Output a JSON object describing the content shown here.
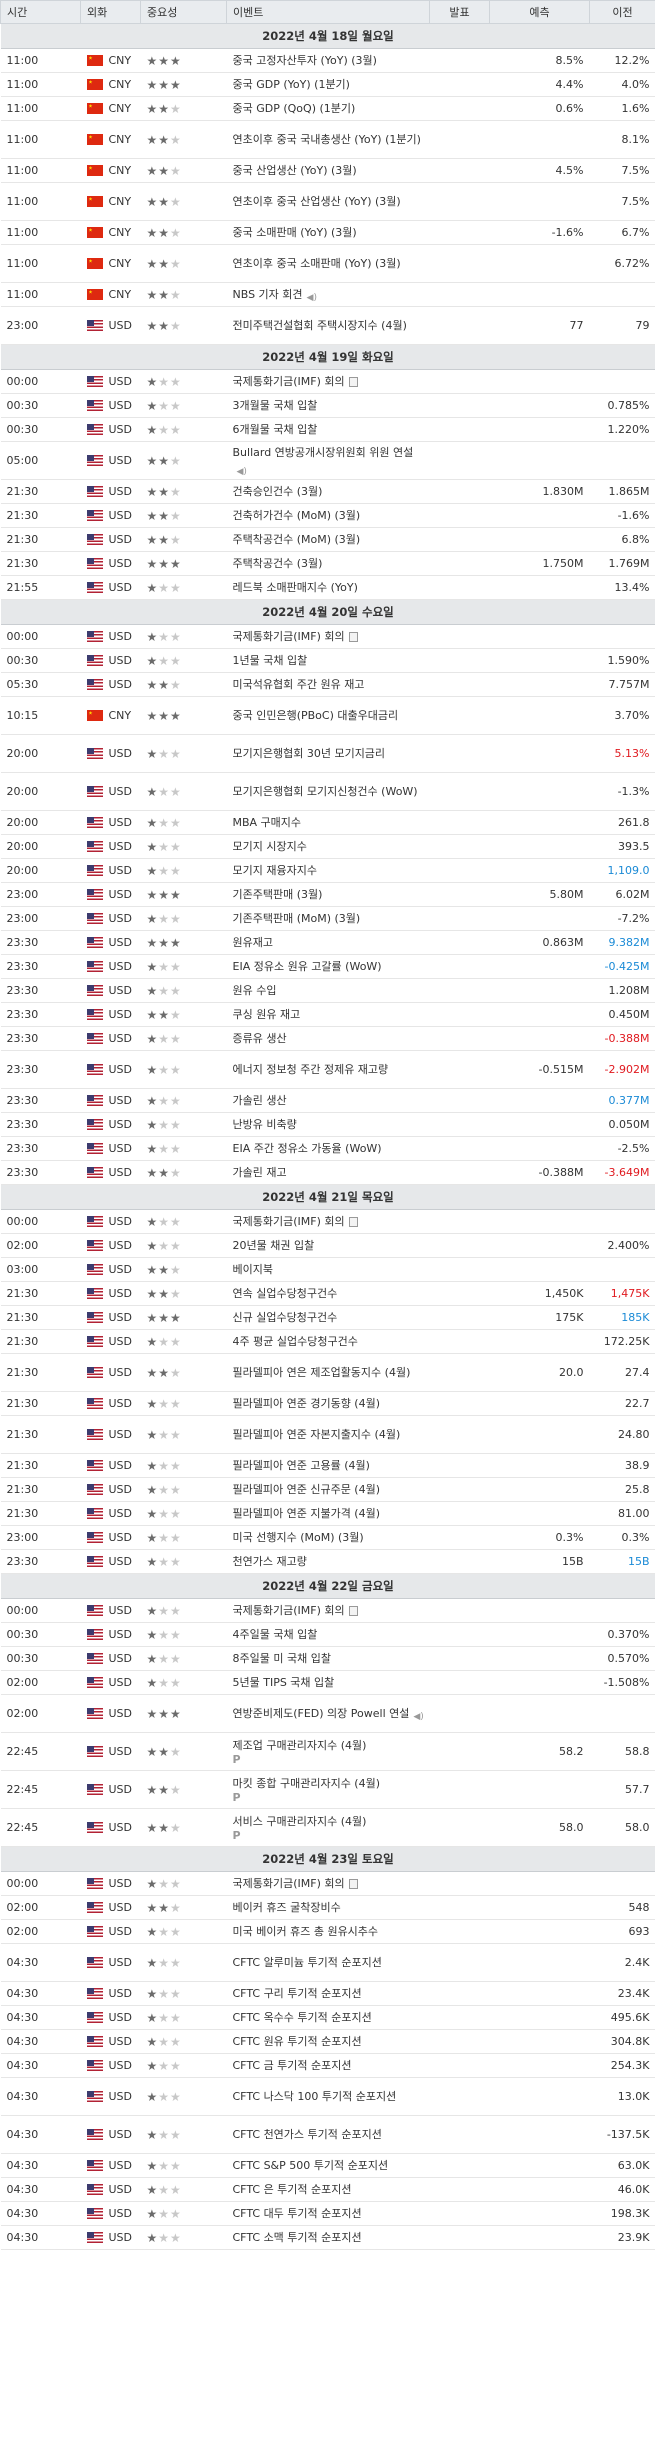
{
  "header": {
    "time": "시간",
    "currency": "외화",
    "importance": "중요성",
    "event": "이벤트",
    "actual": "발표",
    "forecast": "예측",
    "previous": "이전"
  },
  "rows": [
    {
      "date": "2022년 4월 18일 월요일"
    },
    {
      "t": "11:00",
      "c": "CNY",
      "f": "cn",
      "s": 3,
      "e": "중국 고정자산투자 (YoY) (3월)",
      "a": "",
      "fc": "8.5%",
      "p": "12.2%"
    },
    {
      "t": "11:00",
      "c": "CNY",
      "f": "cn",
      "s": 3,
      "e": "중국 GDP (YoY) (1분기)",
      "a": "",
      "fc": "4.4%",
      "p": "4.0%"
    },
    {
      "t": "11:00",
      "c": "CNY",
      "f": "cn",
      "s": 2,
      "e": "중국 GDP (QoQ) (1분기)",
      "a": "",
      "fc": "0.6%",
      "p": "1.6%"
    },
    {
      "t": "11:00",
      "c": "CNY",
      "f": "cn",
      "s": 2,
      "e": "연초이후 중국 국내총생산 (YoY) (1분기)",
      "a": "",
      "fc": "",
      "p": "8.1%",
      "h": "38"
    },
    {
      "t": "11:00",
      "c": "CNY",
      "f": "cn",
      "s": 2,
      "e": "중국 산업생산 (YoY) (3월)",
      "a": "",
      "fc": "4.5%",
      "p": "7.5%"
    },
    {
      "t": "11:00",
      "c": "CNY",
      "f": "cn",
      "s": 2,
      "e": "연초이후 중국 산업생산 (YoY) (3월)",
      "a": "",
      "fc": "",
      "p": "7.5%",
      "h": "38"
    },
    {
      "t": "11:00",
      "c": "CNY",
      "f": "cn",
      "s": 2,
      "e": "중국 소매판매 (YoY) (3월)",
      "a": "",
      "fc": "-1.6%",
      "p": "6.7%"
    },
    {
      "t": "11:00",
      "c": "CNY",
      "f": "cn",
      "s": 2,
      "e": "연초이후 중국 소매판매 (YoY) (3월)",
      "a": "",
      "fc": "",
      "p": "6.72%",
      "h": "38"
    },
    {
      "t": "11:00",
      "c": "CNY",
      "f": "cn",
      "s": 2,
      "e": "NBS 기자 회견",
      "a": "",
      "fc": "",
      "p": "",
      "ico": "sound"
    },
    {
      "t": "23:00",
      "c": "USD",
      "f": "us",
      "s": 2,
      "e": "전미주택건설협회 주택시장지수 (4월)",
      "a": "",
      "fc": "77",
      "p": "79",
      "h": "38"
    },
    {
      "date": "2022년 4월 19일 화요일"
    },
    {
      "t": "00:00",
      "c": "USD",
      "f": "us",
      "s": 1,
      "e": "국제통화기금(IMF) 회의",
      "a": "",
      "fc": "",
      "p": "",
      "ico": "doc"
    },
    {
      "t": "00:30",
      "c": "USD",
      "f": "us",
      "s": 1,
      "e": "3개월물 국채 입찰",
      "a": "",
      "fc": "",
      "p": "0.785%"
    },
    {
      "t": "00:30",
      "c": "USD",
      "f": "us",
      "s": 1,
      "e": "6개월물 국채 입찰",
      "a": "",
      "fc": "",
      "p": "1.220%"
    },
    {
      "t": "05:00",
      "c": "USD",
      "f": "us",
      "s": 2,
      "e": "Bullard 연방공개시장위원회 위원 연설",
      "a": "",
      "fc": "",
      "p": "",
      "h": "38",
      "ico": "sound"
    },
    {
      "t": "21:30",
      "c": "USD",
      "f": "us",
      "s": 2,
      "e": "건축승인건수 (3월)",
      "a": "",
      "fc": "1.830M",
      "p": "1.865M"
    },
    {
      "t": "21:30",
      "c": "USD",
      "f": "us",
      "s": 2,
      "e": "건축허가건수 (MoM) (3월)",
      "a": "",
      "fc": "",
      "p": "-1.6%"
    },
    {
      "t": "21:30",
      "c": "USD",
      "f": "us",
      "s": 2,
      "e": "주택착공건수 (MoM) (3월)",
      "a": "",
      "fc": "",
      "p": "6.8%"
    },
    {
      "t": "21:30",
      "c": "USD",
      "f": "us",
      "s": 3,
      "e": "주택착공건수 (3월)",
      "a": "",
      "fc": "1.750M",
      "p": "1.769M"
    },
    {
      "t": "21:55",
      "c": "USD",
      "f": "us",
      "s": 1,
      "e": "레드북 소매판매지수 (YoY)",
      "a": "",
      "fc": "",
      "p": "13.4%"
    },
    {
      "date": "2022년 4월 20일 수요일"
    },
    {
      "t": "00:00",
      "c": "USD",
      "f": "us",
      "s": 1,
      "e": "국제통화기금(IMF) 회의",
      "a": "",
      "fc": "",
      "p": "",
      "ico": "doc"
    },
    {
      "t": "00:30",
      "c": "USD",
      "f": "us",
      "s": 1,
      "e": "1년물 국채 입찰",
      "a": "",
      "fc": "",
      "p": "1.590%"
    },
    {
      "t": "05:30",
      "c": "USD",
      "f": "us",
      "s": 2,
      "e": "미국석유협회 주간 원유 재고",
      "a": "",
      "fc": "",
      "p": "7.757M"
    },
    {
      "t": "10:15",
      "c": "CNY",
      "f": "cn",
      "s": 3,
      "e": "중국 인민은행(PBoC) 대출우대금리",
      "a": "",
      "fc": "",
      "p": "3.70%",
      "h": "38"
    },
    {
      "t": "20:00",
      "c": "USD",
      "f": "us",
      "s": 1,
      "e": "모기지은행협회 30년 모기지금리",
      "a": "",
      "fc": "",
      "p": "5.13%",
      "pc": "red",
      "h": "38"
    },
    {
      "t": "20:00",
      "c": "USD",
      "f": "us",
      "s": 1,
      "e": "모기지은행협회 모기지신청건수 (WoW)",
      "a": "",
      "fc": "",
      "p": "-1.3%",
      "h": "38"
    },
    {
      "t": "20:00",
      "c": "USD",
      "f": "us",
      "s": 1,
      "e": "MBA 구매지수",
      "a": "",
      "fc": "",
      "p": "261.8"
    },
    {
      "t": "20:00",
      "c": "USD",
      "f": "us",
      "s": 1,
      "e": "모기지 시장지수",
      "a": "",
      "fc": "",
      "p": "393.5"
    },
    {
      "t": "20:00",
      "c": "USD",
      "f": "us",
      "s": 1,
      "e": "모기지 재융자지수",
      "a": "",
      "fc": "",
      "p": "1,109.0",
      "pc": "blue"
    },
    {
      "t": "23:00",
      "c": "USD",
      "f": "us",
      "s": 3,
      "e": "기존주택판매 (3월)",
      "a": "",
      "fc": "5.80M",
      "p": "6.02M"
    },
    {
      "t": "23:00",
      "c": "USD",
      "f": "us",
      "s": 1,
      "e": "기존주택판매 (MoM) (3월)",
      "a": "",
      "fc": "",
      "p": "-7.2%"
    },
    {
      "t": "23:30",
      "c": "USD",
      "f": "us",
      "s": 3,
      "e": "원유재고",
      "a": "",
      "fc": "0.863M",
      "p": "9.382M",
      "pc": "blue"
    },
    {
      "t": "23:30",
      "c": "USD",
      "f": "us",
      "s": 1,
      "e": "EIA 정유소 원유 고갈률 (WoW)",
      "a": "",
      "fc": "",
      "p": "-0.425M",
      "pc": "blue"
    },
    {
      "t": "23:30",
      "c": "USD",
      "f": "us",
      "s": 1,
      "e": "원유 수입",
      "a": "",
      "fc": "",
      "p": "1.208M"
    },
    {
      "t": "23:30",
      "c": "USD",
      "f": "us",
      "s": 2,
      "e": "쿠싱 원유 재고",
      "a": "",
      "fc": "",
      "p": "0.450M"
    },
    {
      "t": "23:30",
      "c": "USD",
      "f": "us",
      "s": 1,
      "e": "증류유 생산",
      "a": "",
      "fc": "",
      "p": "-0.388M",
      "pc": "red"
    },
    {
      "t": "23:30",
      "c": "USD",
      "f": "us",
      "s": 1,
      "e": "에너지 정보청 주간 정제유 재고량",
      "a": "",
      "fc": "-0.515M",
      "p": "-2.902M",
      "pc": "red",
      "h": "38"
    },
    {
      "t": "23:30",
      "c": "USD",
      "f": "us",
      "s": 1,
      "e": "가솔린 생산",
      "a": "",
      "fc": "",
      "p": "0.377M",
      "pc": "blue"
    },
    {
      "t": "23:30",
      "c": "USD",
      "f": "us",
      "s": 1,
      "e": "난방유 비축량",
      "a": "",
      "fc": "",
      "p": "0.050M"
    },
    {
      "t": "23:30",
      "c": "USD",
      "f": "us",
      "s": 1,
      "e": "EIA 주간 정유소 가동율 (WoW)",
      "a": "",
      "fc": "",
      "p": "-2.5%"
    },
    {
      "t": "23:30",
      "c": "USD",
      "f": "us",
      "s": 2,
      "e": "가솔린 재고",
      "a": "",
      "fc": "-0.388M",
      "p": "-3.649M",
      "pc": "red"
    },
    {
      "date": "2022년 4월 21일 목요일"
    },
    {
      "t": "00:00",
      "c": "USD",
      "f": "us",
      "s": 1,
      "e": "국제통화기금(IMF) 회의",
      "a": "",
      "fc": "",
      "p": "",
      "ico": "doc"
    },
    {
      "t": "02:00",
      "c": "USD",
      "f": "us",
      "s": 1,
      "e": "20년물 채권 입찰",
      "a": "",
      "fc": "",
      "p": "2.400%"
    },
    {
      "t": "03:00",
      "c": "USD",
      "f": "us",
      "s": 2,
      "e": "베이지북",
      "a": "",
      "fc": "",
      "p": ""
    },
    {
      "t": "21:30",
      "c": "USD",
      "f": "us",
      "s": 2,
      "e": "연속 실업수당청구건수",
      "a": "",
      "fc": "1,450K",
      "p": "1,475K",
      "pc": "red"
    },
    {
      "t": "21:30",
      "c": "USD",
      "f": "us",
      "s": 3,
      "e": "신규 실업수당청구건수",
      "a": "",
      "fc": "175K",
      "p": "185K",
      "pc": "blue"
    },
    {
      "t": "21:30",
      "c": "USD",
      "f": "us",
      "s": 1,
      "e": "4주 평균 실업수당청구건수",
      "a": "",
      "fc": "",
      "p": "172.25K"
    },
    {
      "t": "21:30",
      "c": "USD",
      "f": "us",
      "s": 2,
      "e": "필라델피아 연은 제조업활동지수 (4월)",
      "a": "",
      "fc": "20.0",
      "p": "27.4",
      "h": "38"
    },
    {
      "t": "21:30",
      "c": "USD",
      "f": "us",
      "s": 1,
      "e": "필라델피아 연준 경기동향 (4월)",
      "a": "",
      "fc": "",
      "p": "22.7"
    },
    {
      "t": "21:30",
      "c": "USD",
      "f": "us",
      "s": 1,
      "e": "필라델피아 연준 자본지출지수 (4월)",
      "a": "",
      "fc": "",
      "p": "24.80",
      "h": "38"
    },
    {
      "t": "21:30",
      "c": "USD",
      "f": "us",
      "s": 1,
      "e": "필라델피아 연준 고용률 (4월)",
      "a": "",
      "fc": "",
      "p": "38.9"
    },
    {
      "t": "21:30",
      "c": "USD",
      "f": "us",
      "s": 1,
      "e": "필라델피아 연준 신규주문 (4월)",
      "a": "",
      "fc": "",
      "p": "25.8"
    },
    {
      "t": "21:30",
      "c": "USD",
      "f": "us",
      "s": 1,
      "e": "필라델피아 연준 지불가격 (4월)",
      "a": "",
      "fc": "",
      "p": "81.00"
    },
    {
      "t": "23:00",
      "c": "USD",
      "f": "us",
      "s": 1,
      "e": "미국 선행지수 (MoM) (3월)",
      "a": "",
      "fc": "0.3%",
      "p": "0.3%"
    },
    {
      "t": "23:30",
      "c": "USD",
      "f": "us",
      "s": 1,
      "e": "천연가스 재고량",
      "a": "",
      "fc": "15B",
      "p": "15B",
      "pc": "blue"
    },
    {
      "date": "2022년 4월 22일 금요일"
    },
    {
      "t": "00:00",
      "c": "USD",
      "f": "us",
      "s": 1,
      "e": "국제통화기금(IMF) 회의",
      "a": "",
      "fc": "",
      "p": "",
      "ico": "doc"
    },
    {
      "t": "00:30",
      "c": "USD",
      "f": "us",
      "s": 1,
      "e": "4주일물 국채 입찰",
      "a": "",
      "fc": "",
      "p": "0.370%"
    },
    {
      "t": "00:30",
      "c": "USD",
      "f": "us",
      "s": 1,
      "e": "8주일물 미 국채 입찰",
      "a": "",
      "fc": "",
      "p": "0.570%"
    },
    {
      "t": "02:00",
      "c": "USD",
      "f": "us",
      "s": 1,
      "e": "5년물 TIPS 국채 입찰",
      "a": "",
      "fc": "",
      "p": "-1.508%"
    },
    {
      "t": "02:00",
      "c": "USD",
      "f": "us",
      "s": 3,
      "e": "연방준비제도(FED) 의장 Powell 연설",
      "a": "",
      "fc": "",
      "p": "",
      "h": "38",
      "ico": "sound"
    },
    {
      "t": "22:45",
      "c": "USD",
      "f": "us",
      "s": 2,
      "e": "제조업 구매관리자지수 (4월)",
      "a": "",
      "fc": "58.2",
      "p": "58.8",
      "h": "38",
      "ico": "p"
    },
    {
      "t": "22:45",
      "c": "USD",
      "f": "us",
      "s": 2,
      "e": "마킷 종합 구매관리자지수 (4월)",
      "a": "",
      "fc": "",
      "p": "57.7",
      "h": "38",
      "ico": "p"
    },
    {
      "t": "22:45",
      "c": "USD",
      "f": "us",
      "s": 2,
      "e": "서비스 구매관리자지수 (4월)",
      "a": "",
      "fc": "58.0",
      "p": "58.0",
      "h": "38",
      "ico": "p"
    },
    {
      "date": "2022년 4월 23일 토요일"
    },
    {
      "t": "00:00",
      "c": "USD",
      "f": "us",
      "s": 1,
      "e": "국제통화기금(IMF) 회의",
      "a": "",
      "fc": "",
      "p": "",
      "ico": "doc"
    },
    {
      "t": "02:00",
      "c": "USD",
      "f": "us",
      "s": 2,
      "e": "베이커 휴즈 굴착장비수",
      "a": "",
      "fc": "",
      "p": "548"
    },
    {
      "t": "02:00",
      "c": "USD",
      "f": "us",
      "s": 1,
      "e": "미국 베이커 휴즈 총 원유시추수",
      "a": "",
      "fc": "",
      "p": "693"
    },
    {
      "t": "04:30",
      "c": "USD",
      "f": "us",
      "s": 1,
      "e": "CFTC 알루미늄 투기적 순포지션",
      "a": "",
      "fc": "",
      "p": "2.4K",
      "h": "38"
    },
    {
      "t": "04:30",
      "c": "USD",
      "f": "us",
      "s": 1,
      "e": "CFTC 구리 투기적 순포지션",
      "a": "",
      "fc": "",
      "p": "23.4K"
    },
    {
      "t": "04:30",
      "c": "USD",
      "f": "us",
      "s": 1,
      "e": "CFTC 옥수수 투기적 순포지션",
      "a": "",
      "fc": "",
      "p": "495.6K"
    },
    {
      "t": "04:30",
      "c": "USD",
      "f": "us",
      "s": 1,
      "e": "CFTC 원유 투기적 순포지션",
      "a": "",
      "fc": "",
      "p": "304.8K"
    },
    {
      "t": "04:30",
      "c": "USD",
      "f": "us",
      "s": 1,
      "e": "CFTC 금 투기적 순포지션",
      "a": "",
      "fc": "",
      "p": "254.3K"
    },
    {
      "t": "04:30",
      "c": "USD",
      "f": "us",
      "s": 1,
      "e": "CFTC 나스닥 100 투기적 순포지션",
      "a": "",
      "fc": "",
      "p": "13.0K",
      "h": "38"
    },
    {
      "t": "04:30",
      "c": "USD",
      "f": "us",
      "s": 1,
      "e": "CFTC 천연가스 투기적 순포지션",
      "a": "",
      "fc": "",
      "p": "-137.5K",
      "h": "38"
    },
    {
      "t": "04:30",
      "c": "USD",
      "f": "us",
      "s": 1,
      "e": "CFTC S&P 500 투기적 순포지션",
      "a": "",
      "fc": "",
      "p": "63.0K"
    },
    {
      "t": "04:30",
      "c": "USD",
      "f": "us",
      "s": 1,
      "e": "CFTC 은 투기적 순포지션",
      "a": "",
      "fc": "",
      "p": "46.0K"
    },
    {
      "t": "04:30",
      "c": "USD",
      "f": "us",
      "s": 1,
      "e": "CFTC 대두 투기적 순포지션",
      "a": "",
      "fc": "",
      "p": "198.3K"
    },
    {
      "t": "04:30",
      "c": "USD",
      "f": "us",
      "s": 1,
      "e": "CFTC 소맥 투기적 순포지션",
      "a": "",
      "fc": "",
      "p": "23.9K"
    }
  ]
}
